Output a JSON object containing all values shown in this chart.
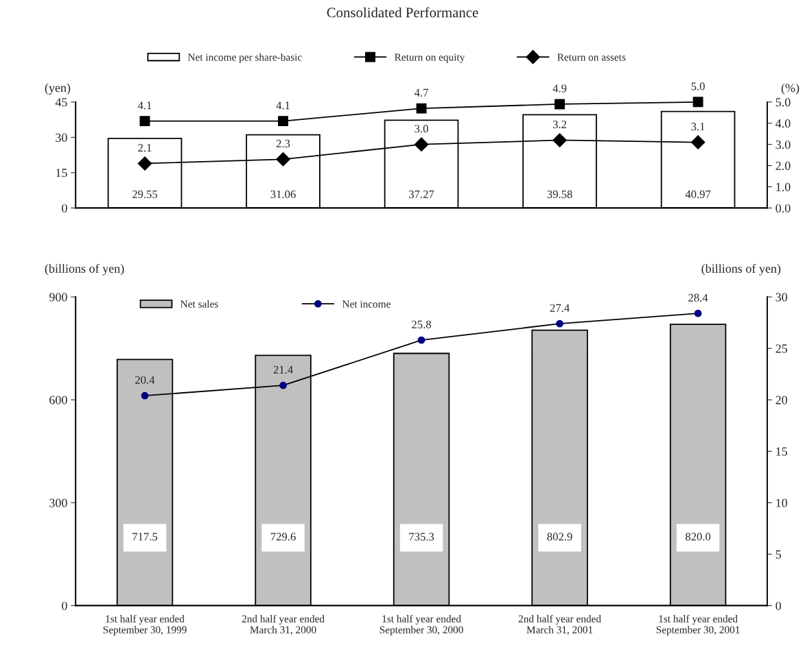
{
  "chart_data": [
    {
      "type": "bar",
      "title": "Consolidated Performance",
      "categories": [
        null,
        null,
        null,
        null,
        null
      ],
      "ylabel": "(yen)",
      "y2label": "(%)",
      "ylim": [
        0,
        45
      ],
      "yticks": [
        0,
        15,
        30,
        45
      ],
      "y2lim": [
        0,
        5
      ],
      "y2ticks": [
        "0.0",
        "1.0",
        "2.0",
        "3.0",
        "4.0",
        "5.0"
      ],
      "legend": "top",
      "series": [
        {
          "name": "Net income per share-basic",
          "color": "#ffffff",
          "values": [
            29.55,
            31.06,
            37.27,
            39.58,
            40.97
          ],
          "value_labels": [
            "29.55",
            "31.06",
            "37.27",
            "39.58",
            "40.97"
          ]
        },
        {
          "name": "Return on equity",
          "type": "line",
          "axis": "y2",
          "marker": "square",
          "color": "#000000",
          "values": [
            4.1,
            4.1,
            4.7,
            4.9,
            5.0
          ],
          "value_labels": [
            "4.1",
            "4.1",
            "4.7",
            "4.9",
            "5.0"
          ]
        },
        {
          "name": "Return on assets",
          "type": "line",
          "axis": "y2",
          "marker": "diamond",
          "color": "#000000",
          "values": [
            2.1,
            2.3,
            3.0,
            3.2,
            3.1
          ],
          "value_labels": [
            "2.1",
            "2.3",
            "3.0",
            "3.2",
            "3.1"
          ]
        }
      ]
    },
    {
      "type": "bar",
      "categories": [
        "1st half year ended\nSeptember 30, 1999",
        "2nd half year ended\nMarch 31, 2000",
        "1st half year ended\nSeptember 30, 2000",
        "2nd half year ended\nMarch 31, 2001",
        "1st half year ended\nSeptember 30, 2001"
      ],
      "ylabel": "(billions of yen)",
      "y2label": "(billions of yen)",
      "ylim": [
        0,
        900
      ],
      "yticks": [
        0,
        300,
        600,
        900
      ],
      "y2lim": [
        0,
        30
      ],
      "y2ticks": [
        0,
        5,
        10,
        15,
        20,
        25,
        30
      ],
      "legend": "top",
      "series": [
        {
          "name": "Net sales",
          "color": "#c0c0c0",
          "values": [
            717.5,
            729.6,
            735.3,
            802.9,
            820.0
          ],
          "value_labels": [
            "717.5",
            "729.6",
            "735.3",
            "802.9",
            "820.0"
          ]
        },
        {
          "name": "Net income",
          "type": "line",
          "axis": "y2",
          "marker": "circle",
          "color": "#000080",
          "values": [
            20.4,
            21.4,
            25.8,
            27.4,
            28.4
          ],
          "value_labels": [
            "20.4",
            "21.4",
            "25.8",
            "27.4",
            "28.4"
          ]
        }
      ]
    }
  ]
}
